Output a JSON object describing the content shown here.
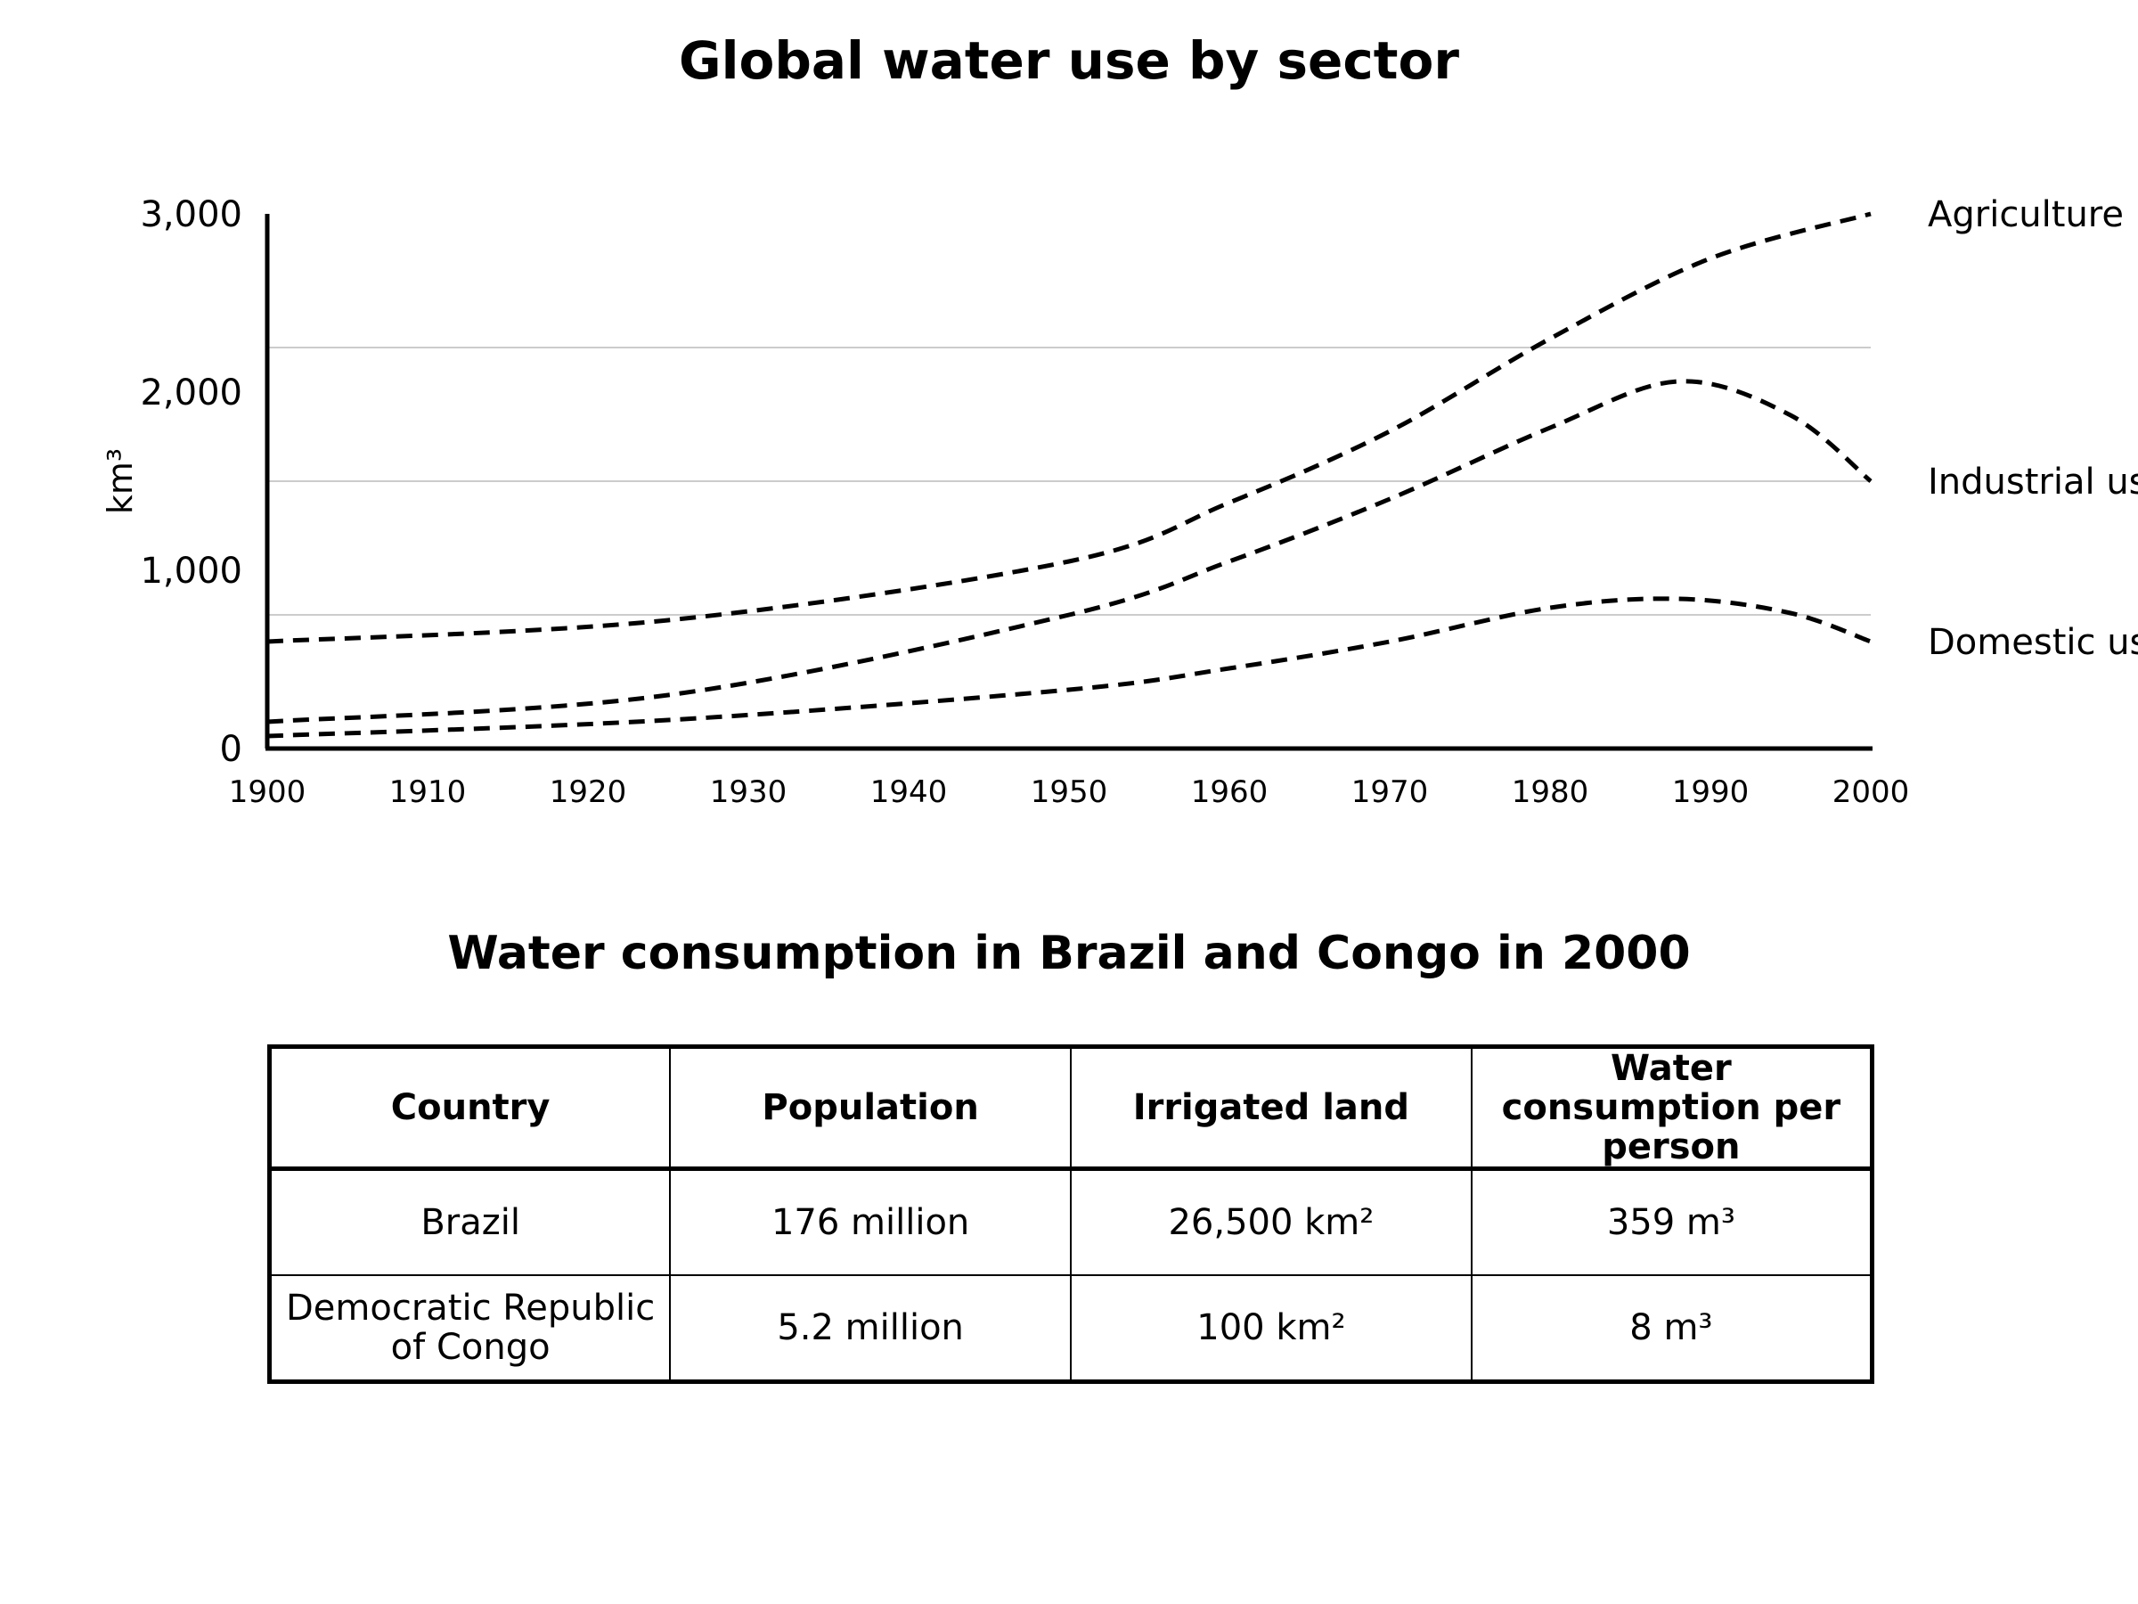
{
  "chart_data": {
    "type": "line",
    "title": "Global water use by sector",
    "xlabel": "",
    "ylabel": "km³",
    "xlim": [
      1900,
      2000
    ],
    "ylim": [
      0,
      3000
    ],
    "x_ticks": [
      1900,
      1910,
      1920,
      1930,
      1940,
      1950,
      1960,
      1970,
      1980,
      1990,
      2000
    ],
    "y_ticks": [
      {
        "value": 0,
        "label": "0"
      },
      {
        "value": 1000,
        "label": "1,000"
      },
      {
        "value": 2000,
        "label": "2,000"
      },
      {
        "value": 3000,
        "label": "3,000"
      }
    ],
    "gridlines_y": [
      750,
      1500,
      2250
    ],
    "series": [
      {
        "name": "Agriculture",
        "label_at_y": 3000,
        "x": [
          1900,
          1925,
          1950,
          1960,
          1970,
          1980,
          1990,
          2000
        ],
        "values": [
          600,
          720,
          1050,
          1380,
          1780,
          2300,
          2750,
          3000
        ]
      },
      {
        "name": "Industrial use",
        "label_at_y": 1500,
        "x": [
          1900,
          1925,
          1950,
          1960,
          1970,
          1980,
          1988,
          1995,
          2000
        ],
        "values": [
          150,
          300,
          750,
          1050,
          1400,
          1800,
          2060,
          1870,
          1500
        ]
      },
      {
        "name": "Domestic use",
        "label_at_y": 600,
        "x": [
          1900,
          1925,
          1950,
          1960,
          1970,
          1980,
          1988,
          1995,
          2000
        ],
        "values": [
          70,
          160,
          330,
          450,
          600,
          790,
          840,
          760,
          600
        ]
      }
    ],
    "line_style": "dashed",
    "line_color": "#000000",
    "grid_color": "#cccccc"
  },
  "table": {
    "title": "Water consumption in Brazil and Congo in 2000",
    "headers": [
      "Country",
      "Population",
      "Irrigated land",
      "Water consumption per person"
    ],
    "rows": [
      [
        "Brazil",
        "176 million",
        "26,500 km²",
        "359 m³"
      ],
      [
        "Democratic Republic of Congo",
        "5.2 million",
        "100 km²",
        "8 m³"
      ]
    ]
  }
}
